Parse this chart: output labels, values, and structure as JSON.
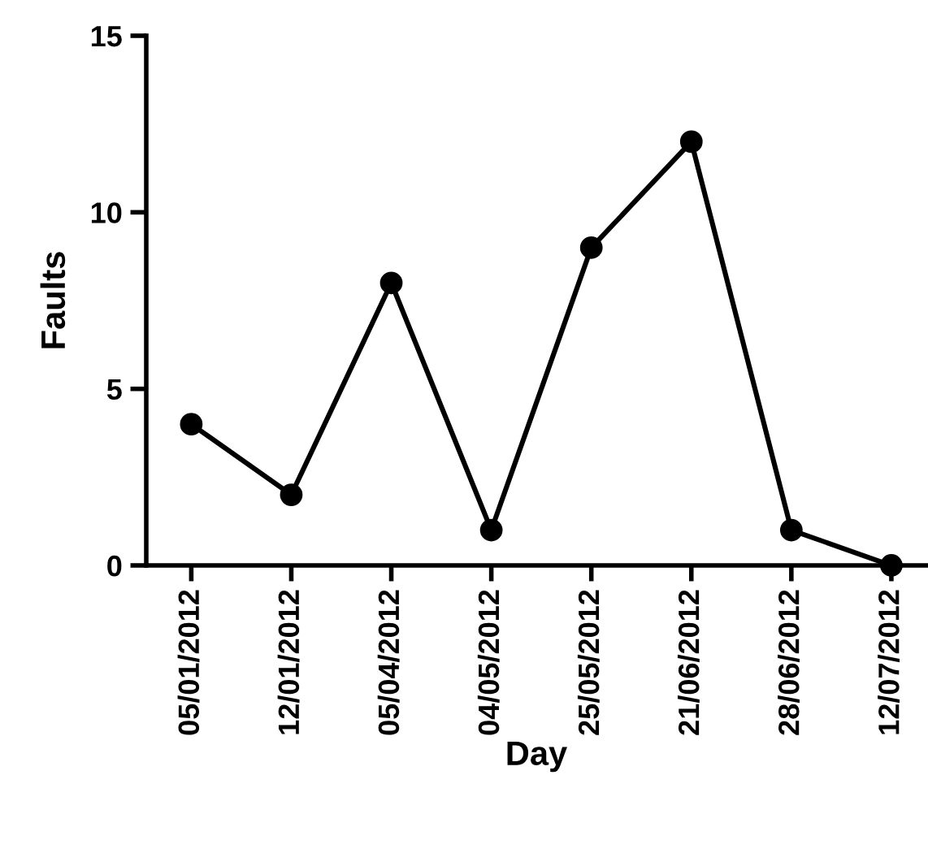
{
  "chart_data": {
    "type": "line",
    "xlabel": "Day",
    "ylabel": "Faults",
    "categories": [
      "05/01/2012",
      "12/01/2012",
      "05/04/2012",
      "04/05/2012",
      "25/05/2012",
      "21/06/2012",
      "28/06/2012",
      "12/07/2012"
    ],
    "series": [
      {
        "color": "#000000",
        "values": [
          4,
          2,
          8,
          1,
          9,
          12,
          1,
          0
        ]
      }
    ],
    "ylim": [
      0,
      15
    ],
    "yticks": [
      0,
      5,
      10,
      15
    ],
    "grid": false,
    "marker": "circle",
    "line_style": "solid"
  }
}
